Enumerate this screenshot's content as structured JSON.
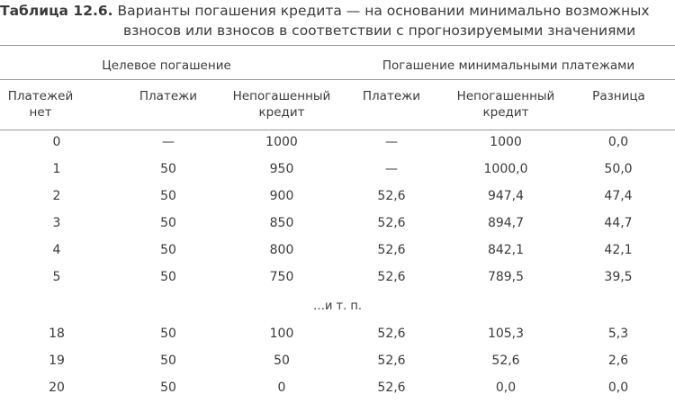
{
  "caption": {
    "label": "Таблица 12.6.",
    "text_line1": "Варианты погашения кредита — на основании минимально возможных",
    "text_line2": "взносов или взносов в соответствии с прогнозируемыми значениями"
  },
  "groups": {
    "target": "Целевое погашение",
    "minimal": "Погашение минимальными платежами"
  },
  "headers": [
    "Платежей нет",
    "Платежи",
    "Непогашенный кредит",
    "Платежи",
    "Непогашенный кредит",
    "Разница"
  ],
  "rows_top": [
    [
      "0",
      "—",
      "1000",
      "—",
      "1000",
      "0,0"
    ],
    [
      "1",
      "50",
      "950",
      "—",
      "1000,0",
      "50,0"
    ],
    [
      "2",
      "50",
      "900",
      "52,6",
      "947,4",
      "47,4"
    ],
    [
      "3",
      "50",
      "850",
      "52,6",
      "894,7",
      "44,7"
    ],
    [
      "4",
      "50",
      "800",
      "52,6",
      "842,1",
      "42,1"
    ],
    [
      "5",
      "50",
      "750",
      "52,6",
      "789,5",
      "39,5"
    ]
  ],
  "ellipsis": "…и т. п.",
  "rows_bottom": [
    [
      "18",
      "50",
      "100",
      "52,6",
      "105,3",
      "5,3"
    ],
    [
      "19",
      "50",
      "50",
      "52,6",
      "52,6",
      "2,6"
    ],
    [
      "20",
      "50",
      "0",
      "52,6",
      "0,0",
      "0,0"
    ]
  ]
}
